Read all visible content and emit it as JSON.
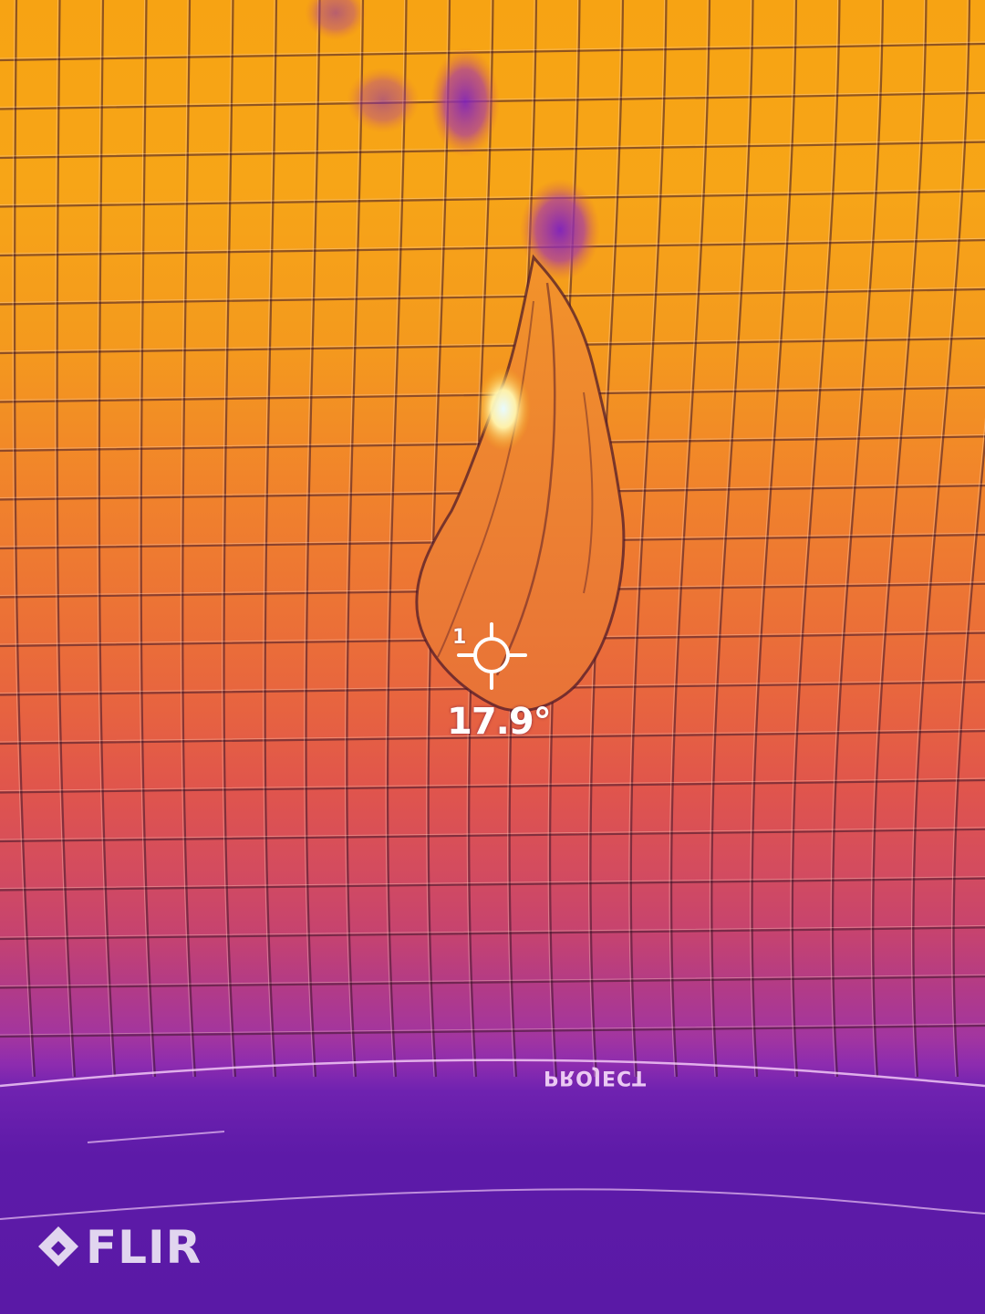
{
  "camera": {
    "brand_logo": "FLIR",
    "logo_icon": "flir-diamond-icon"
  },
  "measurement": {
    "spot_index": "1",
    "spot_temperature": "17.9°",
    "spot_icon": "crosshair-spot-icon"
  },
  "scene": {
    "box_label": "PROJECT"
  },
  "palette": {
    "hot": "#f7a313",
    "mid": "#e76340",
    "cold": "#5a19a6"
  }
}
